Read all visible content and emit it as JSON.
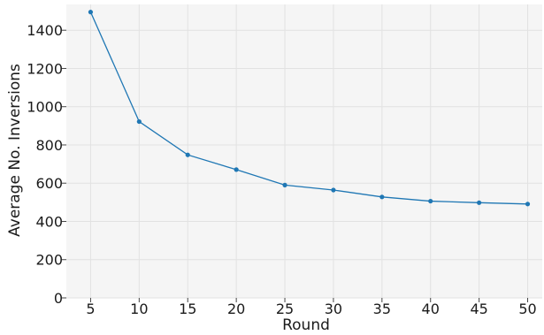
{
  "chart_data": {
    "type": "line",
    "xlabel": "Round",
    "ylabel": "Average No. Inversions",
    "x": [
      5,
      10,
      15,
      20,
      25,
      30,
      35,
      40,
      45,
      50
    ],
    "series": [
      {
        "values": [
          1495,
          922,
          748,
          671,
          590,
          564,
          528,
          506,
          498,
          491
        ]
      }
    ],
    "xlim": [
      2.5,
      51.5
    ],
    "ylim": [
      0,
      1535
    ],
    "xticks": [
      5,
      10,
      15,
      20,
      25,
      30,
      35,
      40,
      45,
      50
    ],
    "yticks": [
      0,
      200,
      400,
      600,
      800,
      1000,
      1200,
      1400
    ],
    "grid": true,
    "colors": {
      "line": "#1f77b4",
      "plot_background": "#f5f5f5"
    }
  }
}
